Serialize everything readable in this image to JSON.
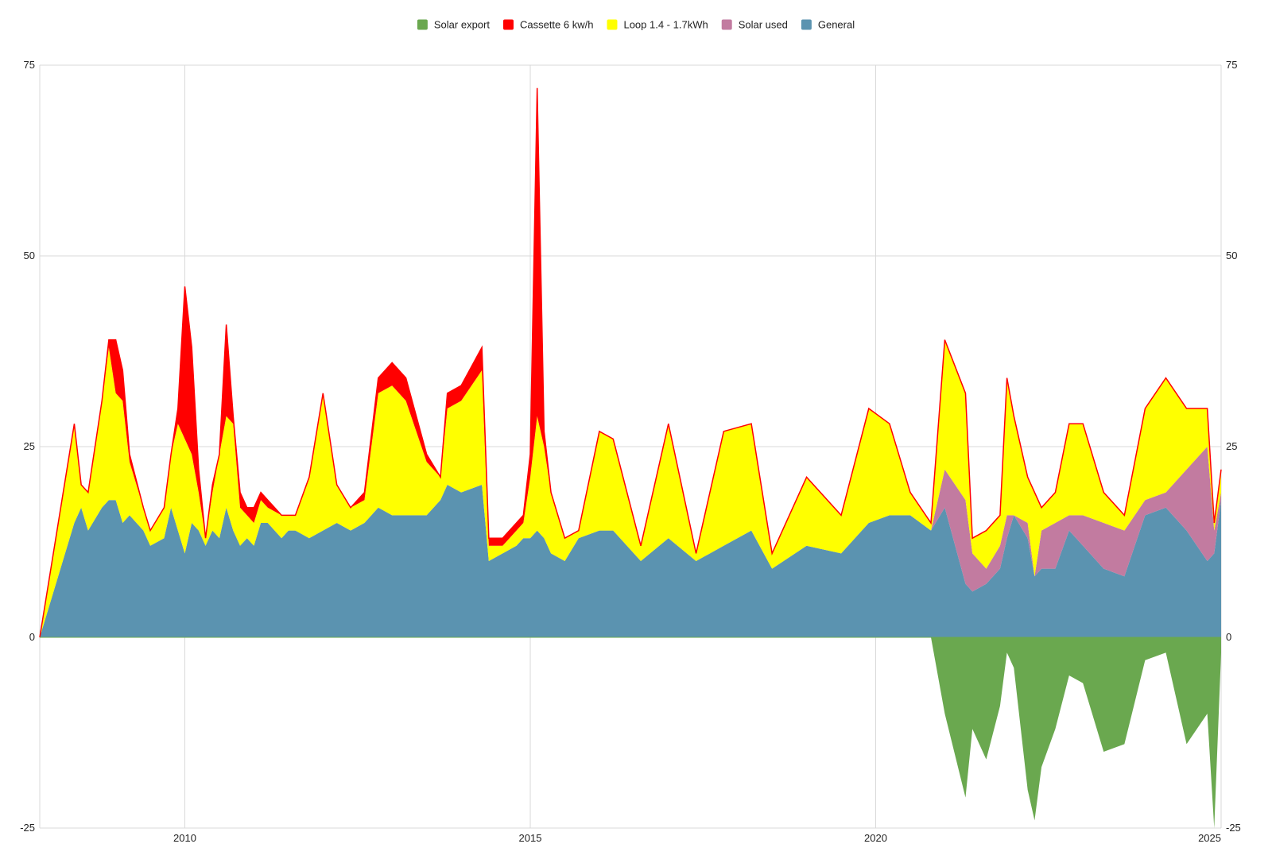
{
  "colors": {
    "solar_export": "#6aa84f",
    "cassette": "#ff0000",
    "loop": "#ffff00",
    "solar_used": "#c27ba0",
    "general": "#5b93b0",
    "grid": "#d9d9d9",
    "text": "#222222"
  },
  "chart_data": {
    "type": "area",
    "stacked": true,
    "title": "",
    "xlabel": "",
    "ylabel": "",
    "xlim": [
      2007.9,
      2025.0
    ],
    "ylim": [
      -25,
      75
    ],
    "grid": true,
    "legend_position": "top-center",
    "x_ticks": [
      {
        "value": 2010,
        "label": "2010"
      },
      {
        "value": 2015,
        "label": "2015"
      },
      {
        "value": 2020,
        "label": "2020"
      },
      {
        "value": 2025,
        "label": "2025"
      }
    ],
    "y_ticks": [
      {
        "value": -25,
        "label": "-25"
      },
      {
        "value": 0,
        "label": "0"
      },
      {
        "value": 25,
        "label": "25"
      },
      {
        "value": 50,
        "label": "50"
      },
      {
        "value": 75,
        "label": "75"
      }
    ],
    "legend": [
      {
        "key": "solar_export",
        "label": "Solar export"
      },
      {
        "key": "cassette",
        "label": "Cassette 6 kw/h"
      },
      {
        "key": "loop",
        "label": "Loop 1.4 - 1.7kWh"
      },
      {
        "key": "solar_used",
        "label": "Solar used"
      },
      {
        "key": "general",
        "label": "General"
      }
    ],
    "x": [
      2007.9,
      2008.4,
      2008.5,
      2008.6,
      2008.8,
      2008.9,
      2009.0,
      2009.1,
      2009.2,
      2009.4,
      2009.5,
      2009.7,
      2009.8,
      2009.9,
      2010.0,
      2010.1,
      2010.2,
      2010.3,
      2010.4,
      2010.5,
      2010.6,
      2010.7,
      2010.8,
      2010.9,
      2011.0,
      2011.1,
      2011.2,
      2011.4,
      2011.5,
      2011.6,
      2011.8,
      2012.0,
      2012.2,
      2012.4,
      2012.6,
      2012.8,
      2013.0,
      2013.2,
      2013.5,
      2013.7,
      2013.8,
      2014.0,
      2014.3,
      2014.4,
      2014.6,
      2014.8,
      2014.9,
      2015.0,
      2015.1,
      2015.2,
      2015.3,
      2015.5,
      2015.7,
      2016.0,
      2016.2,
      2016.6,
      2017.0,
      2017.4,
      2017.8,
      2018.2,
      2018.5,
      2019.0,
      2019.5,
      2019.9,
      2020.2,
      2020.5,
      2020.8,
      2021.0,
      2021.3,
      2021.4,
      2021.6,
      2021.8,
      2021.9,
      2022.0,
      2022.2,
      2022.3,
      2022.4,
      2022.6,
      2022.8,
      2023.0,
      2023.3,
      2023.6,
      2023.9,
      2024.2,
      2024.5,
      2024.8,
      2024.9,
      2025.0
    ],
    "series": [
      {
        "key": "general",
        "name": "General",
        "values": [
          0,
          15,
          17,
          14,
          17,
          18,
          18,
          15,
          16,
          14,
          12,
          13,
          17,
          14,
          11,
          15,
          14,
          12,
          14,
          13,
          17,
          14,
          12,
          13,
          12,
          15,
          15,
          13,
          14,
          14,
          13,
          14,
          15,
          14,
          15,
          17,
          16,
          16,
          16,
          18,
          20,
          19,
          20,
          10,
          11,
          12,
          13,
          13,
          14,
          13,
          11,
          10,
          13,
          14,
          14,
          10,
          13,
          10,
          12,
          14,
          9,
          12,
          11,
          15,
          16,
          16,
          14,
          17,
          7,
          6,
          7,
          9,
          13,
          16,
          13,
          8,
          9,
          9,
          14,
          12,
          9,
          8,
          16,
          17,
          14,
          10,
          11,
          18
        ]
      },
      {
        "key": "solar_used",
        "name": "Solar used",
        "values": [
          0,
          0,
          0,
          0,
          0,
          0,
          0,
          0,
          0,
          0,
          0,
          0,
          0,
          0,
          0,
          0,
          0,
          0,
          0,
          0,
          0,
          0,
          0,
          0,
          0,
          0,
          0,
          0,
          0,
          0,
          0,
          0,
          0,
          0,
          0,
          0,
          0,
          0,
          0,
          0,
          0,
          0,
          0,
          0,
          0,
          0,
          0,
          0,
          0,
          0,
          0,
          0,
          0,
          0,
          0,
          0,
          0,
          0,
          0,
          0,
          0,
          0,
          0,
          0,
          0,
          0,
          0,
          5,
          11,
          5,
          2,
          3,
          3,
          0,
          2,
          0,
          5,
          6,
          2,
          4,
          6,
          6,
          2,
          2,
          8,
          15,
          3,
          1
        ]
      },
      {
        "key": "loop",
        "name": "Loop 1.4 - 1.7kWh",
        "values": [
          0,
          13,
          3,
          5,
          14,
          20,
          14,
          16,
          7,
          3,
          2,
          4,
          7,
          14,
          15,
          9,
          5,
          1,
          5,
          11,
          12,
          14,
          5,
          3,
          3,
          3,
          2,
          3,
          2,
          2,
          8,
          18,
          5,
          3,
          3,
          15,
          17,
          15,
          7,
          3,
          10,
          12,
          15,
          2,
          1,
          2,
          2,
          8,
          15,
          12,
          8,
          3,
          1,
          13,
          12,
          2,
          15,
          1,
          15,
          14,
          2,
          9,
          5,
          15,
          12,
          3,
          1,
          17,
          14,
          2,
          5,
          4,
          18,
          13,
          6,
          11,
          3,
          4,
          12,
          12,
          4,
          2,
          12,
          15,
          8,
          5,
          1,
          3
        ]
      },
      {
        "key": "cassette",
        "name": "Cassette 6 kw/h",
        "values": [
          0,
          0,
          0,
          0,
          0,
          1,
          7,
          4,
          1,
          0,
          0,
          0,
          0,
          2,
          20,
          14,
          3,
          0,
          1,
          0,
          12,
          1,
          2,
          1,
          2,
          1,
          1,
          0,
          0,
          0,
          0,
          0,
          0,
          0,
          1,
          2,
          3,
          3,
          1,
          0,
          2,
          2,
          3,
          1,
          1,
          1,
          1,
          3,
          43,
          2,
          0,
          0,
          0,
          0,
          0,
          0,
          0,
          0,
          0,
          0,
          0,
          0,
          0,
          0,
          0,
          0,
          0,
          0,
          0,
          0,
          0,
          0,
          0,
          0,
          0,
          0,
          0,
          0,
          0,
          0,
          0,
          0,
          0,
          0,
          0,
          0,
          0,
          0
        ]
      },
      {
        "key": "solar_export",
        "name": "Solar export",
        "values": [
          0,
          0,
          0,
          0,
          0,
          0,
          0,
          0,
          0,
          0,
          0,
          0,
          0,
          0,
          0,
          0,
          0,
          0,
          0,
          0,
          0,
          0,
          0,
          0,
          0,
          0,
          0,
          0,
          0,
          0,
          0,
          0,
          0,
          0,
          0,
          0,
          0,
          0,
          0,
          0,
          0,
          0,
          0,
          0,
          0,
          0,
          0,
          0,
          0,
          0,
          0,
          0,
          0,
          0,
          0,
          0,
          0,
          0,
          0,
          0,
          0,
          0,
          0,
          0,
          0,
          0,
          0,
          -10,
          -21,
          -12,
          -16,
          -9,
          -2,
          -4,
          -20,
          -24,
          -17,
          -12,
          -5,
          -6,
          -15,
          -14,
          -3,
          -2,
          -14,
          -10,
          -25,
          -2
        ]
      }
    ]
  }
}
